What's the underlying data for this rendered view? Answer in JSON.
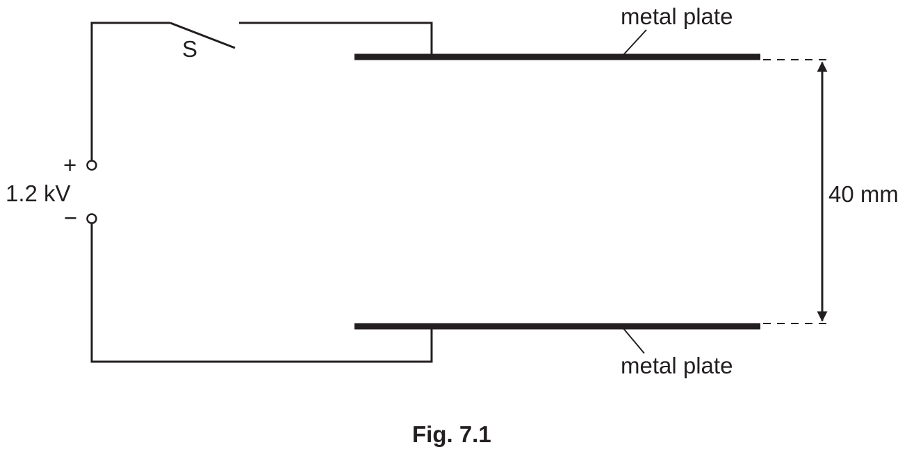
{
  "diagram": {
    "switch_label": "S",
    "supply": {
      "positive_symbol": "+",
      "negative_symbol": "−",
      "voltage_label": "1.2 kV"
    },
    "top_plate_label": "metal plate",
    "bottom_plate_label": "metal plate",
    "separation_label": "40 mm",
    "caption": "Fig. 7.1"
  }
}
